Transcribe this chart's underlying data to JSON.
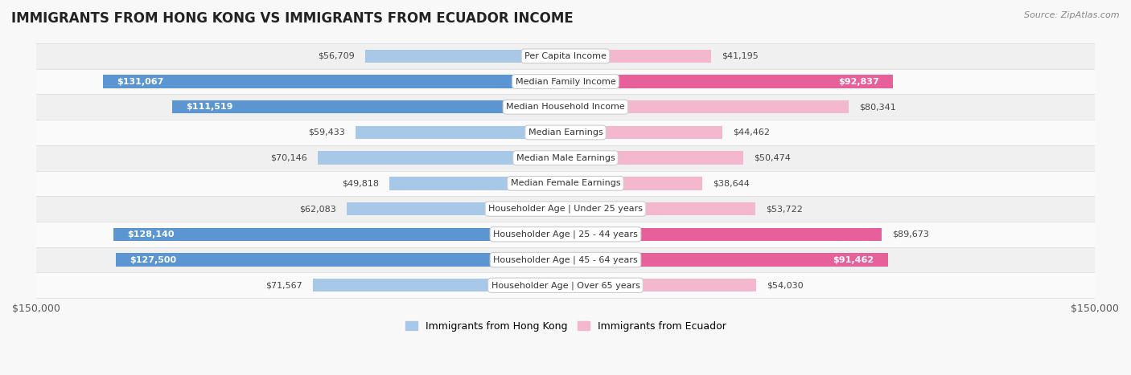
{
  "title": "IMMIGRANTS FROM HONG KONG VS IMMIGRANTS FROM ECUADOR INCOME",
  "source": "Source: ZipAtlas.com",
  "categories": [
    "Per Capita Income",
    "Median Family Income",
    "Median Household Income",
    "Median Earnings",
    "Median Male Earnings",
    "Median Female Earnings",
    "Householder Age | Under 25 years",
    "Householder Age | 25 - 44 years",
    "Householder Age | 45 - 64 years",
    "Householder Age | Over 65 years"
  ],
  "hong_kong_values": [
    56709,
    131067,
    111519,
    59433,
    70146,
    49818,
    62083,
    128140,
    127500,
    71567
  ],
  "ecuador_values": [
    41195,
    92837,
    80341,
    44462,
    50474,
    38644,
    53722,
    89673,
    91462,
    54030
  ],
  "hong_kong_labels": [
    "$56,709",
    "$131,067",
    "$111,519",
    "$59,433",
    "$70,146",
    "$49,818",
    "$62,083",
    "$128,140",
    "$127,500",
    "$71,567"
  ],
  "ecuador_labels": [
    "$41,195",
    "$92,837",
    "$80,341",
    "$44,462",
    "$50,474",
    "$38,644",
    "$53,722",
    "$89,673",
    "$91,462",
    "$54,030"
  ],
  "hk_solid_indices": [
    1,
    2,
    7,
    8
  ],
  "ec_solid_indices": [
    1,
    7,
    8
  ],
  "ec_label_inside_indices": [
    1,
    8
  ],
  "hk_color_light": "#a8c8e8",
  "hk_color_solid": "#5b96d2",
  "ec_color_light": "#f4b8ce",
  "ec_color_solid": "#e8609a",
  "legend_hk": "Immigrants from Hong Kong",
  "legend_ec": "Immigrants from Ecuador",
  "axis_max": 150000,
  "row_colors": [
    "#f0f0f0",
    "#fafafa",
    "#f0f0f0",
    "#fafafa",
    "#f0f0f0",
    "#fafafa",
    "#f0f0f0",
    "#fafafa",
    "#f0f0f0",
    "#fafafa"
  ]
}
